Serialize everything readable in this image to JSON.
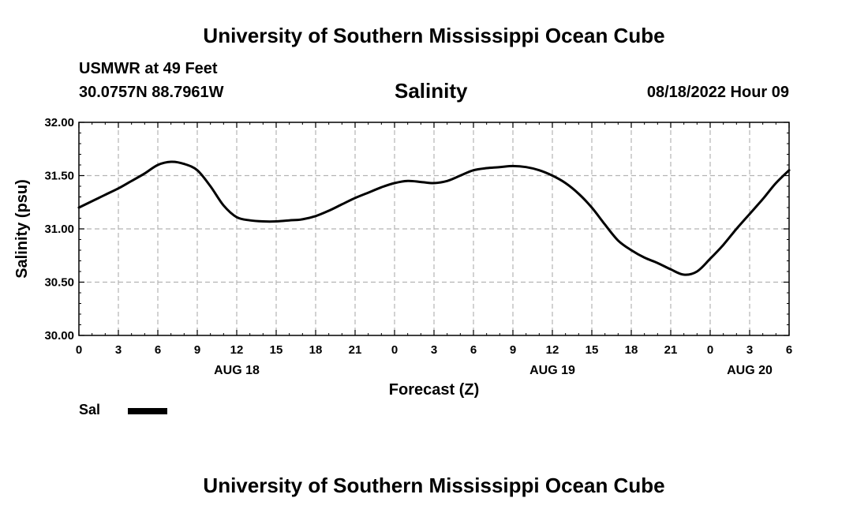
{
  "header": {
    "title": "University of Southern Mississippi Ocean Cube",
    "station": "USMWR at 49 Feet",
    "coords": "30.0757N  88.7961W",
    "datetime": "08/18/2022 Hour 09"
  },
  "footer": {
    "title": "University of Southern Mississippi Ocean Cube"
  },
  "chart_data": {
    "type": "line",
    "title": "Salinity",
    "xlabel": "Forecast (Z)",
    "ylabel": "Salinity (psu)",
    "xlim": [
      0,
      54
    ],
    "ylim": [
      30.0,
      32.0
    ],
    "grid": true,
    "x_tick_labels": [
      "0",
      "3",
      "6",
      "9",
      "12",
      "15",
      "18",
      "21",
      "0",
      "3",
      "6",
      "9",
      "12",
      "15",
      "18",
      "21",
      "0",
      "3",
      "6"
    ],
    "y_tick_labels": [
      "30.00",
      "30.50",
      "31.00",
      "31.50",
      "32.00"
    ],
    "date_labels": [
      {
        "label": "AUG 18",
        "at": 12
      },
      {
        "label": "AUG 19",
        "at": 36
      },
      {
        "label": "AUG 20",
        "at": 51
      }
    ],
    "legend": {
      "label": "Sal",
      "placement": "bottom-left",
      "color": "#000000"
    },
    "series": [
      {
        "name": "Sal",
        "color": "#000000",
        "x": [
          0,
          1,
          2,
          3,
          4,
          5,
          6,
          7,
          8,
          9,
          10,
          11,
          12,
          13,
          14,
          15,
          16,
          17,
          18,
          19,
          20,
          21,
          22,
          23,
          24,
          25,
          26,
          27,
          28,
          29,
          30,
          31,
          32,
          33,
          34,
          35,
          36,
          37,
          38,
          39,
          40,
          41,
          42,
          43,
          44,
          45,
          46,
          47,
          48,
          49,
          50,
          51,
          52,
          53,
          54
        ],
        "values": [
          31.2,
          31.26,
          31.32,
          31.38,
          31.45,
          31.52,
          31.6,
          31.63,
          31.61,
          31.55,
          31.4,
          31.22,
          31.11,
          31.08,
          31.07,
          31.07,
          31.08,
          31.09,
          31.12,
          31.17,
          31.23,
          31.29,
          31.34,
          31.39,
          31.43,
          31.45,
          31.44,
          31.43,
          31.45,
          31.5,
          31.55,
          31.57,
          31.58,
          31.59,
          31.58,
          31.55,
          31.5,
          31.43,
          31.33,
          31.2,
          31.04,
          30.89,
          30.8,
          30.73,
          30.68,
          30.62,
          30.57,
          30.6,
          30.72,
          30.85,
          31.0,
          31.14,
          31.28,
          31.43,
          31.55
        ]
      }
    ]
  }
}
